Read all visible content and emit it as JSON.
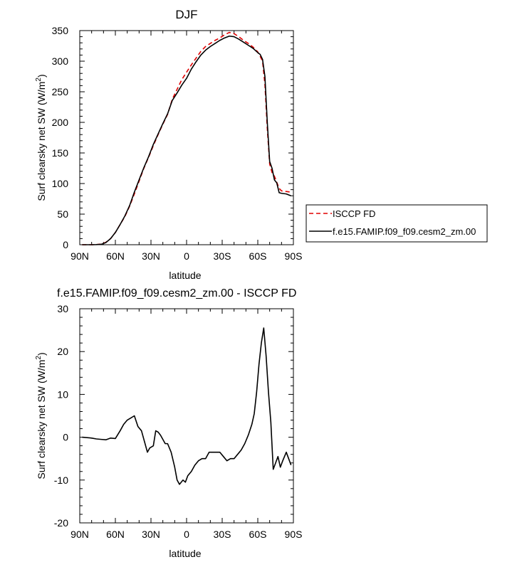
{
  "chart_data": [
    {
      "type": "line",
      "title": "DJF",
      "xlabel": "latitude",
      "ylabel": "Surf clearsky net SW (W/m",
      "ylabel_sup": "2",
      "ylabel_close": ")",
      "xlim": [
        -90,
        90
      ],
      "ylim": [
        0,
        350
      ],
      "xticks": [
        -90,
        -60,
        -30,
        0,
        30,
        60,
        90
      ],
      "xtick_labels": [
        "90N",
        "60N",
        "30N",
        "0",
        "30S",
        "60S",
        "90S"
      ],
      "yticks": [
        0,
        50,
        100,
        150,
        200,
        250,
        300,
        350
      ],
      "ytick_labels": [
        "0",
        "50",
        "100",
        "150",
        "200",
        "250",
        "300",
        "350"
      ],
      "legend": "right",
      "series": [
        {
          "name": "ISCCP FD",
          "color": "#e00000",
          "dash": "dashed",
          "x": [
            -88,
            -84,
            -80,
            -76,
            -72,
            -68,
            -64,
            -60,
            -56,
            -52,
            -48,
            -44,
            -40,
            -36,
            -32,
            -28,
            -24,
            -20,
            -16,
            -12,
            -8,
            -4,
            0,
            4,
            8,
            12,
            16,
            20,
            24,
            28,
            32,
            36,
            40,
            44,
            48,
            52,
            56,
            60,
            62,
            64,
            66,
            68,
            70,
            72,
            74,
            76,
            78,
            80,
            84,
            88
          ],
          "y": [
            0,
            0,
            0,
            0.3,
            1,
            4,
            10,
            20,
            33,
            46,
            63,
            83,
            104,
            125,
            143,
            162,
            180,
            197,
            213,
            238,
            254,
            270,
            282,
            294,
            305,
            316,
            324,
            329,
            334,
            338,
            343,
            347,
            345,
            340,
            334,
            329,
            323,
            315,
            308,
            300,
            262,
            190,
            132,
            118,
            112,
            102,
            92,
            88,
            87,
            86
          ]
        },
        {
          "name": "f.e15.FAMIP.f09_f09.cesm2_zm.00",
          "color": "#000000",
          "dash": "solid",
          "x": [
            -88,
            -84,
            -80,
            -76,
            -72,
            -68,
            -64,
            -60,
            -56,
            -52,
            -48,
            -44,
            -40,
            -36,
            -32,
            -28,
            -24,
            -20,
            -16,
            -12,
            -8,
            -4,
            0,
            4,
            8,
            12,
            16,
            20,
            24,
            28,
            32,
            36,
            40,
            44,
            48,
            52,
            56,
            60,
            62,
            64,
            66,
            68,
            70,
            72,
            74,
            76,
            78,
            80,
            84,
            88
          ],
          "y": [
            0,
            0,
            0,
            0.2,
            0.6,
            3.5,
            10,
            20,
            33,
            47,
            64,
            86,
            106,
            126,
            144,
            164,
            181,
            198,
            214,
            236,
            248,
            261,
            272,
            287,
            299,
            310,
            318,
            324,
            329,
            334,
            338,
            341,
            340,
            336,
            331,
            326,
            321,
            314,
            311,
            303,
            275,
            200,
            136,
            125,
            106,
            101,
            85,
            84,
            83,
            80
          ]
        }
      ]
    },
    {
      "type": "line",
      "title": "f.e15.FAMIP.f09_f09.cesm2_zm.00 - ISCCP FD",
      "xlabel": "latitude",
      "ylabel": "Surf clearsky net SW (W/m",
      "ylabel_sup": "2",
      "ylabel_close": ")",
      "xlim": [
        -90,
        90
      ],
      "ylim": [
        -20,
        30
      ],
      "xticks": [
        -90,
        -60,
        -30,
        0,
        30,
        60,
        90
      ],
      "xtick_labels": [
        "90N",
        "60N",
        "30N",
        "0",
        "30S",
        "60S",
        "90S"
      ],
      "yticks": [
        -20,
        -10,
        0,
        10,
        20,
        30
      ],
      "ytick_labels": [
        "-20",
        "-10",
        "0",
        "10",
        "20",
        "30"
      ],
      "series": [
        {
          "name": "f.e15.FAMIP.f09_f09.cesm2_zm.00 - ISCCP FD",
          "color": "#000000",
          "dash": "solid",
          "x": [
            -88,
            -80,
            -76,
            -72,
            -68,
            -64,
            -60,
            -56,
            -53,
            -50,
            -47,
            -44,
            -41,
            -38,
            -35,
            -33,
            -31,
            -28,
            -26,
            -24,
            -22,
            -20,
            -18,
            -16,
            -13,
            -10,
            -8,
            -6,
            -3,
            -1,
            1,
            4,
            7,
            10,
            13,
            16,
            19,
            22,
            25,
            28,
            31,
            34,
            37,
            40,
            43,
            46,
            49,
            52,
            55,
            57,
            59,
            61,
            63,
            65,
            67,
            69,
            71,
            73,
            75,
            77,
            79,
            81,
            84,
            86,
            88
          ],
          "y": [
            0,
            -0.2,
            -0.4,
            -0.5,
            -0.6,
            -0.2,
            -0.3,
            1.5,
            3,
            4,
            4.5,
            5,
            2.5,
            1.5,
            -1.5,
            -3.5,
            -2.5,
            -2,
            1.5,
            1.2,
            0.5,
            -0.5,
            -1.5,
            -1.5,
            -3.5,
            -7,
            -10,
            -11,
            -10,
            -10.5,
            -9,
            -8,
            -6.5,
            -5.5,
            -5,
            -5,
            -3.5,
            -3.5,
            -3.5,
            -3.5,
            -4.5,
            -5.5,
            -5,
            -5,
            -4,
            -3,
            -1.5,
            0.5,
            3,
            5.5,
            10.5,
            17,
            22,
            25.5,
            19,
            10.5,
            3.5,
            -7.5,
            -6,
            -4.5,
            -7,
            -5.5,
            -3.5,
            -5,
            -6.5
          ]
        }
      ]
    }
  ]
}
